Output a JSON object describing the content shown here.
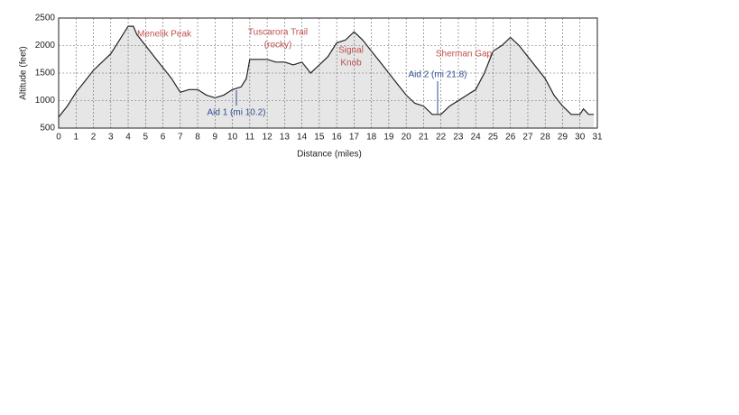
{
  "chart_data": {
    "type": "area",
    "x_label": "Distance (miles)",
    "y_label": "Altitude (feet)",
    "x": [
      0,
      0.5,
      1,
      1.5,
      2,
      2.5,
      3,
      3.5,
      4,
      4.3,
      4.5,
      5,
      5.5,
      6,
      6.5,
      7,
      7.5,
      8,
      8.5,
      9,
      9.5,
      10,
      10.5,
      10.8,
      11,
      12,
      12.5,
      13,
      13.5,
      14,
      14.5,
      15,
      15.5,
      16,
      16.5,
      17,
      17.5,
      18,
      18.5,
      19,
      19.5,
      20,
      20.5,
      21,
      21.5,
      22,
      22.5,
      23,
      23.5,
      24,
      24.5,
      25,
      25.5,
      26,
      26.5,
      27,
      27.5,
      28,
      28.5,
      29,
      29.5,
      30,
      30.2,
      30.5,
      30.8
    ],
    "values": [
      700,
      900,
      1150,
      1350,
      1550,
      1700,
      1850,
      2100,
      2350,
      2350,
      2200,
      2000,
      1800,
      1600,
      1400,
      1150,
      1200,
      1200,
      1100,
      1050,
      1100,
      1200,
      1250,
      1400,
      1750,
      1750,
      1700,
      1700,
      1650,
      1700,
      1500,
      1650,
      1800,
      2050,
      2100,
      2250,
      2100,
      1900,
      1700,
      1500,
      1300,
      1100,
      950,
      900,
      750,
      750,
      900,
      1000,
      1100,
      1200,
      1500,
      1900,
      2000,
      2150,
      2000,
      1800,
      1600,
      1400,
      1100,
      900,
      750,
      750,
      850,
      750,
      750
    ],
    "color": "#222222",
    "fill": "#e6e6e6",
    "xlim": [
      0,
      31
    ],
    "xticks": [
      0,
      1,
      2,
      3,
      4,
      5,
      6,
      7,
      8,
      9,
      10,
      11,
      12,
      13,
      14,
      15,
      16,
      17,
      18,
      19,
      20,
      21,
      22,
      23,
      24,
      25,
      26,
      27,
      28,
      29,
      30,
      31
    ],
    "ylim": [
      500,
      2500
    ],
    "yticks": [
      500,
      1000,
      1500,
      2000,
      2500
    ],
    "grid": true,
    "annotations": [
      {
        "lines": [
          "Menelik Peak"
        ],
        "color": "red"
      },
      {
        "lines": [
          "Tuscarora Trail",
          "(rocky)"
        ],
        "color": "red"
      },
      {
        "lines": [
          "Signal",
          "Knob"
        ],
        "color": "red"
      },
      {
        "lines": [
          "Sherman Gap"
        ],
        "color": "red"
      },
      {
        "lines": [
          "Aid 1 (mi 10.2)"
        ],
        "color": "blue"
      },
      {
        "lines": [
          "Aid 2 (mi 21.8)"
        ],
        "color": "blue"
      }
    ]
  }
}
